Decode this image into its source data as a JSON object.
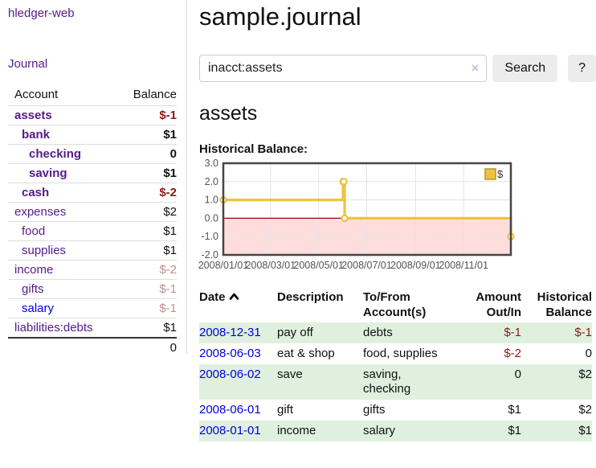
{
  "app": {
    "title": "hledger-web"
  },
  "sidebar": {
    "journal_link": "Journal",
    "accounts_table": {
      "headers": [
        "Account",
        "Balance"
      ],
      "rows": [
        {
          "name": "assets",
          "balance": "$-1",
          "indent": 1,
          "in_path": true,
          "balance_style": "neg-strong"
        },
        {
          "name": "bank",
          "balance": "$1",
          "indent": 2,
          "in_path": true,
          "balance_style": "normal"
        },
        {
          "name": "checking",
          "balance": "0",
          "indent": 3,
          "in_path": true,
          "balance_style": "normal"
        },
        {
          "name": "saving",
          "balance": "$1",
          "indent": 3,
          "in_path": true,
          "balance_style": "normal"
        },
        {
          "name": "cash",
          "balance": "$-2",
          "indent": 2,
          "in_path": true,
          "balance_style": "neg-strong"
        },
        {
          "name": "expenses",
          "balance": "$2",
          "indent": 1,
          "in_path": false,
          "balance_style": "normal"
        },
        {
          "name": "food",
          "balance": "$1",
          "indent": 2,
          "in_path": false,
          "balance_style": "normal"
        },
        {
          "name": "supplies",
          "balance": "$1",
          "indent": 2,
          "in_path": false,
          "balance_style": "normal"
        },
        {
          "name": "income",
          "balance": "$-2",
          "indent": 1,
          "in_path": false,
          "balance_style": "neg-muted"
        },
        {
          "name": "gifts",
          "balance": "$-1",
          "indent": 2,
          "in_path": false,
          "balance_style": "neg-muted"
        },
        {
          "name": "salary",
          "balance": "$-1",
          "indent": 2,
          "in_path": false,
          "balance_style": "neg-muted",
          "link_style": "unvisited"
        },
        {
          "name": "liabilities:debts",
          "balance": "$1",
          "indent": 1,
          "in_path": false,
          "balance_style": "normal"
        }
      ],
      "total": "0"
    }
  },
  "header": {
    "title": "sample.journal"
  },
  "search": {
    "value": "inacct:assets",
    "clear_icon": "×",
    "search_button": "Search",
    "help_button": "?"
  },
  "account_page": {
    "title": "assets",
    "chart_label": "Historical Balance:"
  },
  "chart_data": {
    "type": "line",
    "title": "Historical Balance",
    "steps": true,
    "series": [
      {
        "name": "$",
        "color": "#edc240",
        "points": [
          {
            "date": "2008-01-01",
            "day": 0,
            "value": 1
          },
          {
            "date": "2008-06-01",
            "day": 152,
            "value": 2
          },
          {
            "date": "2008-06-02",
            "day": 153,
            "value": 2
          },
          {
            "date": "2008-06-03",
            "day": 154,
            "value": 0
          },
          {
            "date": "2008-12-31",
            "day": 365,
            "value": -1
          }
        ]
      }
    ],
    "x_ticks": [
      "2008/01/01",
      "2008/03/01",
      "2008/05/01",
      "2008/07/01",
      "2008/09/01",
      "2008/11/01"
    ],
    "x_tick_days": [
      0,
      60,
      121,
      182,
      244,
      305
    ],
    "x_range_days": [
      0,
      365
    ],
    "y_ticks": [
      3.0,
      2.0,
      1.0,
      0.0,
      -1.0,
      -2.0
    ],
    "ylim": [
      -2,
      3
    ],
    "grid": true,
    "legend_position": "top-right",
    "negative_region_fill": "#ffdddd",
    "zero_line_color": "#aa0000"
  },
  "register_table": {
    "headers": {
      "date": "Date",
      "description": "Description",
      "accounts": "To/From Account(s)",
      "amount": "Amount Out/In",
      "balance": "Historical Balance"
    },
    "rows": [
      {
        "date": "2008-12-31",
        "description": "pay off",
        "accounts": "debts",
        "amount": "$-1",
        "amount_neg": true,
        "balance": "$-1",
        "balance_neg": true
      },
      {
        "date": "2008-06-03",
        "description": "eat & shop",
        "accounts": "food, supplies",
        "amount": "$-2",
        "amount_neg": true,
        "balance": "0",
        "balance_neg": false
      },
      {
        "date": "2008-06-02",
        "description": "save",
        "accounts": "saving, checking",
        "amount": "0",
        "amount_neg": false,
        "balance": "$2",
        "balance_neg": false
      },
      {
        "date": "2008-06-01",
        "description": "gift",
        "accounts": "gifts",
        "amount": "$1",
        "amount_neg": false,
        "balance": "$2",
        "balance_neg": false
      },
      {
        "date": "2008-01-01",
        "description": "income",
        "accounts": "salary",
        "amount": "$1",
        "amount_neg": false,
        "balance": "$1",
        "balance_neg": false
      }
    ]
  },
  "colors": {
    "link_purple": "#551a8b",
    "link_blue": "#0000dd",
    "negative": "#8b1a1a",
    "negative_muted": "#bb8f8f",
    "row_stripe_green": "#dff0df",
    "chart_line_gold": "#edc240",
    "chart_negative_fill": "#ffdddd",
    "chart_zero_line": "#aa0000"
  }
}
